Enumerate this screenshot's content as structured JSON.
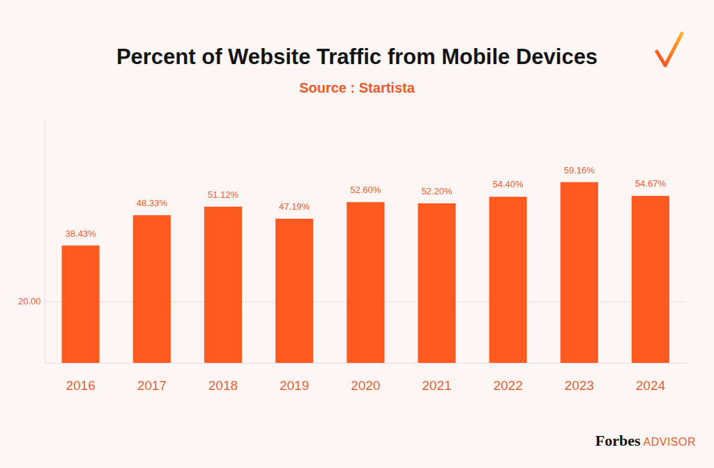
{
  "chart_data": {
    "type": "bar",
    "title": "Percent of Website Traffic from Mobile Devices",
    "subtitle": "Source : Startista",
    "annotations": [
      "Forbes",
      "ADVISOR"
    ],
    "categories": [
      "2016",
      "2017",
      "2018",
      "2019",
      "2020",
      "2021",
      "2022",
      "2023",
      "2024"
    ],
    "values": [
      38.43,
      48.33,
      51.12,
      47.19,
      52.6,
      52.2,
      54.4,
      59.16,
      54.67
    ],
    "value_labels": [
      "38.43%",
      "48.33%",
      "51.12%",
      "47.19%",
      "52.60%",
      "52.20%",
      "54.40%",
      "59.16%",
      "54.67%"
    ],
    "color": "#ff5a1f",
    "data_labels": true,
    "ylim": [
      0,
      80
    ],
    "yticks": [
      {
        "value": 20,
        "label": "20.00"
      }
    ],
    "grid": true
  }
}
